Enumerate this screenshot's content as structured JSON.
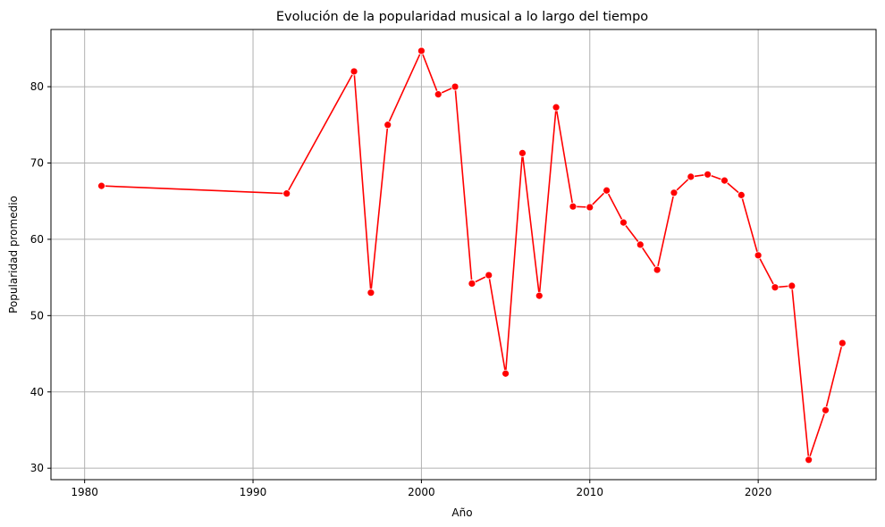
{
  "chart_data": {
    "type": "line",
    "title": "Evolución de la popularidad musical a lo largo del tiempo",
    "xlabel": "Año",
    "ylabel": "Popularidad promedio",
    "xlim": [
      1978,
      2027
    ],
    "ylim": [
      28.5,
      87.5
    ],
    "xticks": [
      1980,
      1990,
      2000,
      2010,
      2020
    ],
    "yticks": [
      30,
      40,
      50,
      60,
      70,
      80
    ],
    "grid": true,
    "series": [
      {
        "color": "#ff0000",
        "marker": "circle",
        "x": [
          1981,
          1992,
          1996,
          1997,
          1998,
          2000,
          2001,
          2002,
          2003,
          2004,
          2005,
          2006,
          2007,
          2008,
          2009,
          2010,
          2011,
          2012,
          2013,
          2014,
          2015,
          2016,
          2017,
          2018,
          2019,
          2020,
          2021,
          2022,
          2023,
          2024,
          2025
        ],
        "y": [
          67.0,
          66.0,
          82.0,
          53.0,
          75.0,
          84.7,
          79.0,
          80.0,
          54.2,
          55.3,
          42.4,
          71.3,
          52.6,
          77.3,
          64.3,
          64.2,
          66.4,
          62.2,
          59.3,
          56.0,
          66.1,
          68.2,
          68.5,
          67.7,
          65.8,
          57.9,
          53.7,
          53.9,
          31.1,
          37.6,
          46.4
        ]
      }
    ]
  }
}
